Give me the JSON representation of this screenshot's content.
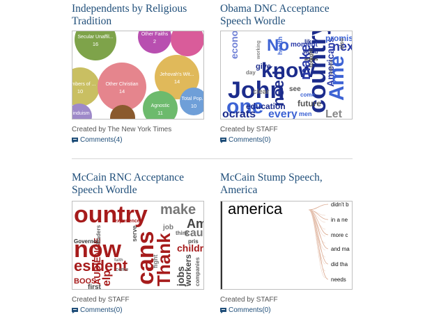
{
  "cards": [
    {
      "title": "Independents by Religious Tradition",
      "credit": "Created by The New York Times",
      "comments": "Comments(4)",
      "bubbles": [
        {
          "label": "Secular Unaffil...",
          "value": "16",
          "color": "#7ea34a"
        },
        {
          "label": "Other Faiths",
          "value": "2",
          "color": "#b84fb0"
        },
        {
          "label": "",
          "value": "",
          "color": "#d95c9a"
        },
        {
          "label": "Members of ...",
          "value": "10",
          "color": "#c9bf62"
        },
        {
          "label": "Other Christian",
          "value": "14",
          "color": "#e5858d"
        },
        {
          "label": "Jehovah's Wit...",
          "value": "14",
          "color": "#e0b95a"
        },
        {
          "label": "Agnostic",
          "value": "11",
          "color": "#6dba6d"
        },
        {
          "label": "Total Pop...",
          "value": "10",
          "color": "#6f9fd8"
        },
        {
          "label": "Hinduism",
          "value": "",
          "color": "#9e89c9"
        },
        {
          "label": "",
          "value": "",
          "color": "#8a5a2e"
        }
      ]
    },
    {
      "title": "Obama DNC Acceptance Speech Wordle",
      "credit": "Created by STAFF",
      "comments": "Comments(0)",
      "words": [
        "John",
        "one",
        "know",
        "econom",
        "make",
        "need",
        "No",
        "country",
        "Americans",
        "future",
        "education",
        "every",
        "men",
        "Let",
        "ocrats",
        "health",
        "moment",
        "world",
        "across",
        "give",
        "clear",
        "day",
        "like",
        "see",
        "come",
        "working",
        "tonight",
        "promise",
        "without",
        "nex",
        "Ame",
        "also"
      ]
    },
    {
      "title": "McCain RNC Acceptance Speech Wordle",
      "credit": "Created by STAFF",
      "comments": "Comments(0)",
      "words": [
        "ountry",
        "make",
        "now",
        "cans",
        "Thank",
        "esident",
        "AUDIENCE",
        "jobs",
        "children",
        "workers",
        "cause",
        "Am",
        "think",
        "job",
        "BOOS",
        "elp",
        "first",
        "serve",
        "Governor",
        "leaders",
        "experience",
        "faith",
        "pris",
        "fight",
        "come",
        "companies"
      ]
    },
    {
      "title": "McCain Stump Speech, America",
      "credit": "Created by STAFF",
      "comments": "Comments(0)",
      "root_word": "america",
      "branches": [
        "didn't b",
        "in a ne",
        "more c",
        "and ma",
        "did tha",
        "needs"
      ]
    }
  ]
}
